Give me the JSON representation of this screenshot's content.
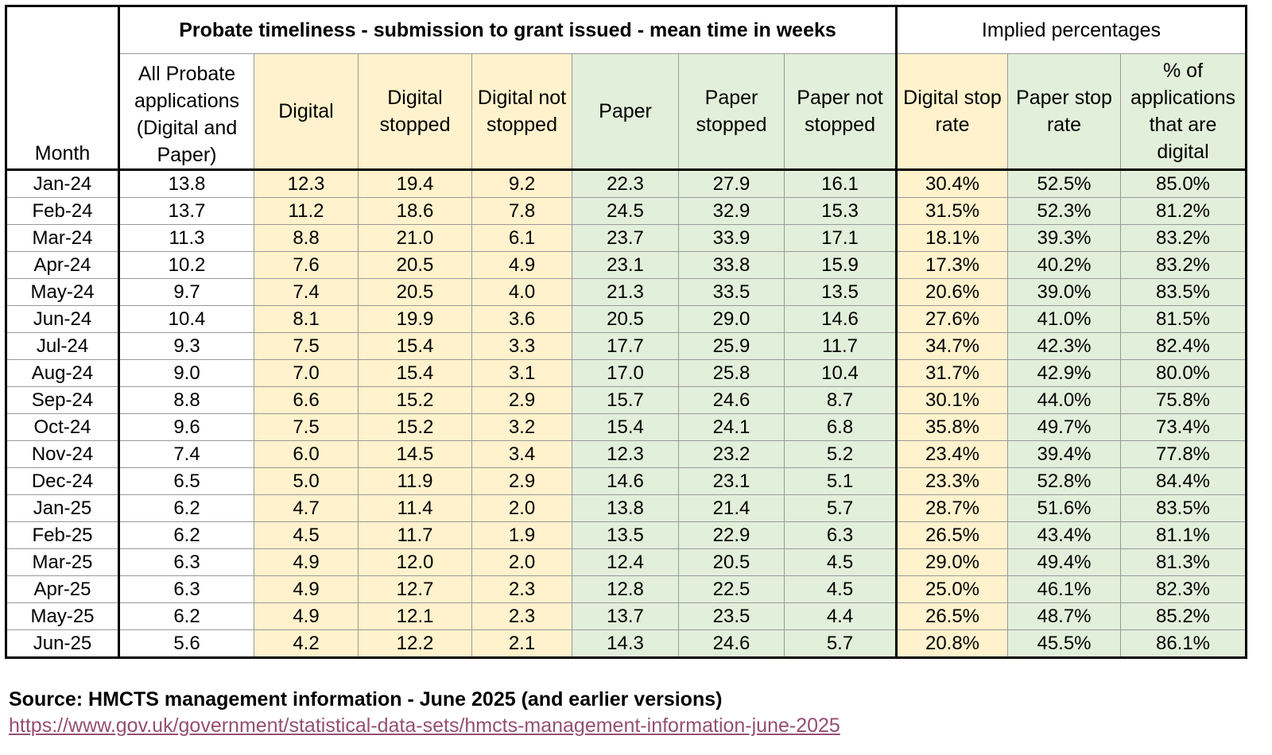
{
  "header": {
    "month": "Month",
    "title": "Probate timeliness - submission to grant issued - mean time in weeks",
    "implied": "Implied percentages",
    "all": "All Probate applications (Digital and Paper)",
    "digital": "Digital",
    "digital_stopped": "Digital stopped",
    "digital_not_stopped": "Digital not stopped",
    "paper": "Paper",
    "paper_stopped": "Paper stopped",
    "paper_not_stopped": "Paper not stopped",
    "digital_stop_rate": "Digital stop rate",
    "paper_stop_rate": "Paper stop rate",
    "pct_digital": "% of applications that are digital"
  },
  "rows": [
    [
      "Jan-24",
      "13.8",
      "12.3",
      "19.4",
      "9.2",
      "22.3",
      "27.9",
      "16.1",
      "30.4%",
      "52.5%",
      "85.0%"
    ],
    [
      "Feb-24",
      "13.7",
      "11.2",
      "18.6",
      "7.8",
      "24.5",
      "32.9",
      "15.3",
      "31.5%",
      "52.3%",
      "81.2%"
    ],
    [
      "Mar-24",
      "11.3",
      "8.8",
      "21.0",
      "6.1",
      "23.7",
      "33.9",
      "17.1",
      "18.1%",
      "39.3%",
      "83.2%"
    ],
    [
      "Apr-24",
      "10.2",
      "7.6",
      "20.5",
      "4.9",
      "23.1",
      "33.8",
      "15.9",
      "17.3%",
      "40.2%",
      "83.2%"
    ],
    [
      "May-24",
      "9.7",
      "7.4",
      "20.5",
      "4.0",
      "21.3",
      "33.5",
      "13.5",
      "20.6%",
      "39.0%",
      "83.5%"
    ],
    [
      "Jun-24",
      "10.4",
      "8.1",
      "19.9",
      "3.6",
      "20.5",
      "29.0",
      "14.6",
      "27.6%",
      "41.0%",
      "81.5%"
    ],
    [
      "Jul-24",
      "9.3",
      "7.5",
      "15.4",
      "3.3",
      "17.7",
      "25.9",
      "11.7",
      "34.7%",
      "42.3%",
      "82.4%"
    ],
    [
      "Aug-24",
      "9.0",
      "7.0",
      "15.4",
      "3.1",
      "17.0",
      "25.8",
      "10.4",
      "31.7%",
      "42.9%",
      "80.0%"
    ],
    [
      "Sep-24",
      "8.8",
      "6.6",
      "15.2",
      "2.9",
      "15.7",
      "24.6",
      "8.7",
      "30.1%",
      "44.0%",
      "75.8%"
    ],
    [
      "Oct-24",
      "9.6",
      "7.5",
      "15.2",
      "3.2",
      "15.4",
      "24.1",
      "6.8",
      "35.8%",
      "49.7%",
      "73.4%"
    ],
    [
      "Nov-24",
      "7.4",
      "6.0",
      "14.5",
      "3.4",
      "12.3",
      "23.2",
      "5.2",
      "23.4%",
      "39.4%",
      "77.8%"
    ],
    [
      "Dec-24",
      "6.5",
      "5.0",
      "11.9",
      "2.9",
      "14.6",
      "23.1",
      "5.1",
      "23.3%",
      "52.8%",
      "84.4%"
    ],
    [
      "Jan-25",
      "6.2",
      "4.7",
      "11.4",
      "2.0",
      "13.8",
      "21.4",
      "5.7",
      "28.7%",
      "51.6%",
      "83.5%"
    ],
    [
      "Feb-25",
      "6.2",
      "4.5",
      "11.7",
      "1.9",
      "13.5",
      "22.9",
      "6.3",
      "26.5%",
      "43.4%",
      "81.1%"
    ],
    [
      "Mar-25",
      "6.3",
      "4.9",
      "12.0",
      "2.0",
      "12.4",
      "20.5",
      "4.5",
      "29.0%",
      "49.4%",
      "81.3%"
    ],
    [
      "Apr-25",
      "6.3",
      "4.9",
      "12.7",
      "2.3",
      "12.8",
      "22.5",
      "4.5",
      "25.0%",
      "46.1%",
      "82.3%"
    ],
    [
      "May-25",
      "6.2",
      "4.9",
      "12.1",
      "2.3",
      "13.7",
      "23.5",
      "4.4",
      "26.5%",
      "48.7%",
      "85.2%"
    ],
    [
      "Jun-25",
      "5.6",
      "4.2",
      "12.2",
      "2.1",
      "14.3",
      "24.6",
      "5.7",
      "20.8%",
      "45.5%",
      "86.1%"
    ]
  ],
  "source": "Source: HMCTS management information - June 2025 (and earlier versions)",
  "link": "https://www.gov.uk/government/statistical-data-sets/hmcts-management-information-june-2025",
  "colors": {
    "digital_bg": "#fff2cc",
    "paper_bg": "#e2efda",
    "link": "#954f72"
  }
}
